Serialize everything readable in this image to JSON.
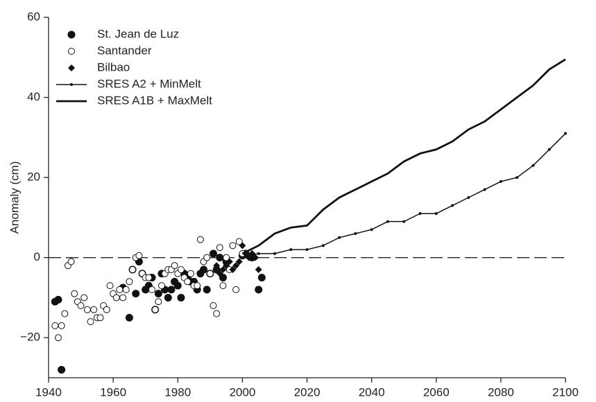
{
  "chart_data": {
    "type": "scatter-line",
    "y_label": "Anomaly (cm)",
    "xlim": [
      1940,
      2100
    ],
    "xticks": [
      1940,
      1960,
      1980,
      2000,
      2020,
      2040,
      2060,
      2080,
      2100
    ],
    "ylim": [
      -30,
      60
    ],
    "yticks": [
      {
        "value": -20,
        "label": "−20"
      },
      0,
      20,
      40,
      60
    ],
    "hline": 0,
    "legend": "top-left",
    "series": [
      {
        "name": "St. Jean de Luz",
        "marker": "filled-circle",
        "color": "#111111",
        "x": [
          1942,
          1943,
          1944,
          1963,
          1965,
          1966,
          1967,
          1968,
          1969,
          1970,
          1971,
          1972,
          1973,
          1974,
          1975,
          1976,
          1977,
          1978,
          1979,
          1980,
          1981,
          1982,
          1983,
          1984,
          1985,
          1986,
          1987,
          1988,
          1989,
          1990,
          1991,
          1992,
          1993,
          1994,
          1995,
          2000,
          2001,
          2003,
          2005,
          2006
        ],
        "values": [
          -11,
          -10.5,
          -28,
          -7.5,
          -15,
          -3,
          -9,
          -1,
          -4,
          -8,
          -7,
          -5,
          -13,
          -9,
          -4,
          -8,
          -10,
          -8,
          -6,
          -7,
          -10,
          -4,
          -5,
          -6,
          -6,
          -8,
          -4,
          -3,
          -8,
          -4,
          1,
          -3,
          0,
          -5,
          -1,
          0.5,
          1,
          0,
          -8,
          -5
        ]
      },
      {
        "name": "Santander",
        "marker": "open-circle",
        "color": "#111111",
        "x": [
          1942,
          1943,
          1944,
          1945,
          1946,
          1947,
          1948,
          1949,
          1950,
          1951,
          1952,
          1953,
          1954,
          1955,
          1956,
          1957,
          1958,
          1959,
          1960,
          1961,
          1962,
          1963,
          1964,
          1965,
          1966,
          1967,
          1968,
          1969,
          1970,
          1971,
          1972,
          1973,
          1974,
          1975,
          1976,
          1977,
          1978,
          1979,
          1980,
          1981,
          1982,
          1983,
          1984,
          1985,
          1986,
          1987,
          1988,
          1989,
          1990,
          1991,
          1992,
          1993,
          1994,
          1995,
          1996,
          1997,
          1998,
          1999,
          2000
        ],
        "values": [
          -17,
          -20,
          -17,
          -14,
          -2,
          -1,
          -9,
          -11,
          -12,
          -10,
          -13,
          -16,
          -13,
          -15,
          -15,
          -12,
          -13,
          -7,
          -9,
          -10,
          -8,
          -10,
          -8,
          -6,
          -3,
          0,
          0.5,
          -4,
          -5,
          -5,
          -8,
          -13,
          -11,
          -7,
          -4,
          -3,
          -3,
          -2,
          -4,
          -3,
          -5,
          -6,
          -4,
          -7,
          -7,
          4.5,
          -1,
          0,
          -4,
          -12,
          -14,
          2.5,
          -7,
          0,
          -3,
          3,
          -8,
          4,
          1
        ]
      },
      {
        "name": "Bilbao",
        "marker": "diamond",
        "color": "#111111",
        "x": [
          1992,
          1993,
          1994,
          1995,
          1996,
          1997,
          1998,
          1999,
          2000,
          2001,
          2002,
          2003,
          2004,
          2005
        ],
        "values": [
          -2,
          -4,
          -3,
          -2,
          -1,
          -3,
          -2,
          -1,
          3,
          1,
          0,
          1,
          0,
          -3
        ]
      },
      {
        "name": "SRES A2 + MinMelt",
        "marker": "line-dot",
        "color": "#111111",
        "x": [
          2000,
          2005,
          2010,
          2015,
          2020,
          2025,
          2030,
          2035,
          2040,
          2045,
          2050,
          2055,
          2060,
          2065,
          2070,
          2075,
          2080,
          2085,
          2090,
          2095,
          2100
        ],
        "values": [
          0,
          1,
          1,
          2,
          2,
          3,
          5,
          6,
          7,
          9,
          9,
          11,
          11,
          13,
          15,
          17,
          19,
          20,
          23,
          27,
          31
        ]
      },
      {
        "name": "SRES A1B + MaxMelt",
        "marker": "line",
        "color": "#111111",
        "x": [
          2000,
          2005,
          2010,
          2015,
          2020,
          2025,
          2030,
          2035,
          2040,
          2045,
          2050,
          2055,
          2060,
          2065,
          2070,
          2075,
          2080,
          2085,
          2090,
          2095,
          2100
        ],
        "values": [
          1,
          3,
          6,
          7.5,
          8,
          12,
          15,
          17,
          19,
          21,
          24,
          26,
          27,
          29,
          32,
          34,
          37,
          40,
          43,
          47,
          49.5
        ]
      }
    ]
  }
}
